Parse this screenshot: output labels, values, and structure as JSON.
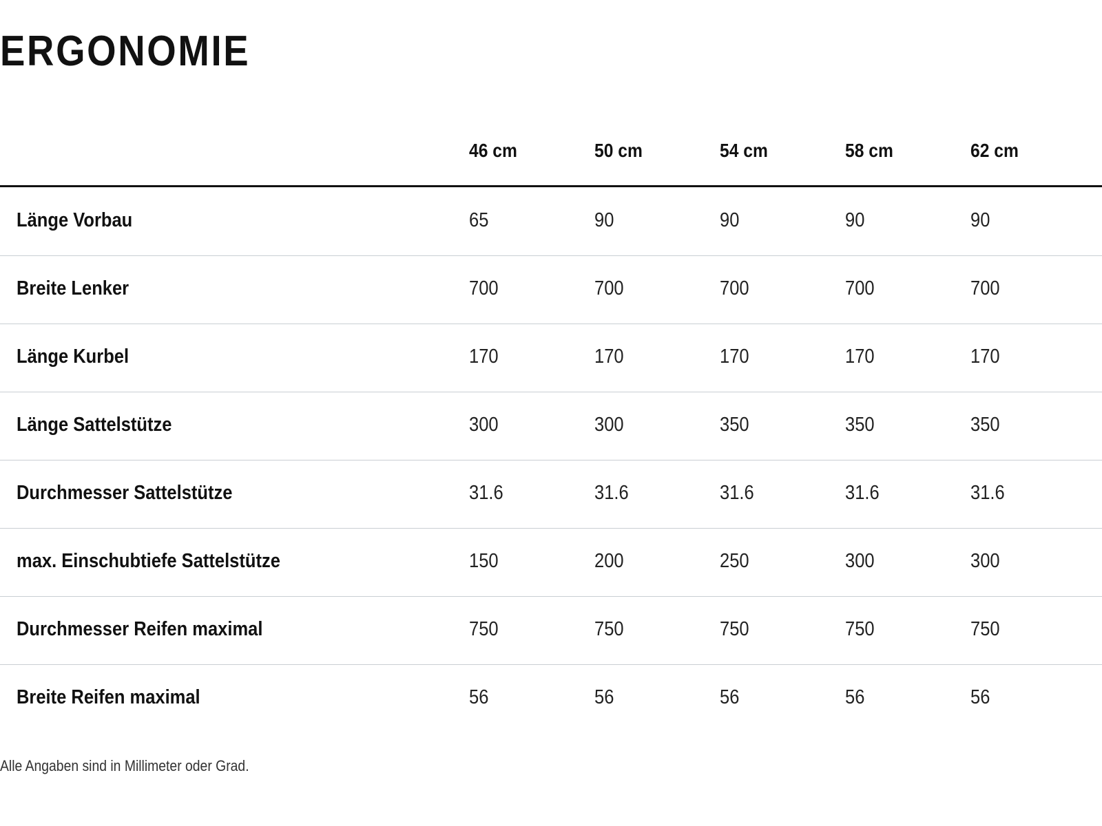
{
  "title": "ERGONOMIE",
  "table": {
    "columns": [
      "46 cm",
      "50 cm",
      "54 cm",
      "58 cm",
      "62 cm"
    ],
    "rows": [
      [
        "Länge Vorbau",
        "65",
        "90",
        "90",
        "90",
        "90"
      ],
      [
        "Breite Lenker",
        "700",
        "700",
        "700",
        "700",
        "700"
      ],
      [
        "Länge Kurbel",
        "170",
        "170",
        "170",
        "170",
        "170"
      ],
      [
        "Länge Sattelstütze",
        "300",
        "300",
        "350",
        "350",
        "350"
      ],
      [
        "Durchmesser Sattelstütze",
        "31.6",
        "31.6",
        "31.6",
        "31.6",
        "31.6"
      ],
      [
        "max. Einschubtiefe Sattelstütze",
        "150",
        "200",
        "250",
        "300",
        "300"
      ],
      [
        "Durchmesser Reifen maximal",
        "750",
        "750",
        "750",
        "750",
        "750"
      ],
      [
        "Breite Reifen maximal",
        "56",
        "56",
        "56",
        "56",
        "56"
      ]
    ]
  },
  "footnote": "Alle Angaben sind in Millimeter oder Grad."
}
